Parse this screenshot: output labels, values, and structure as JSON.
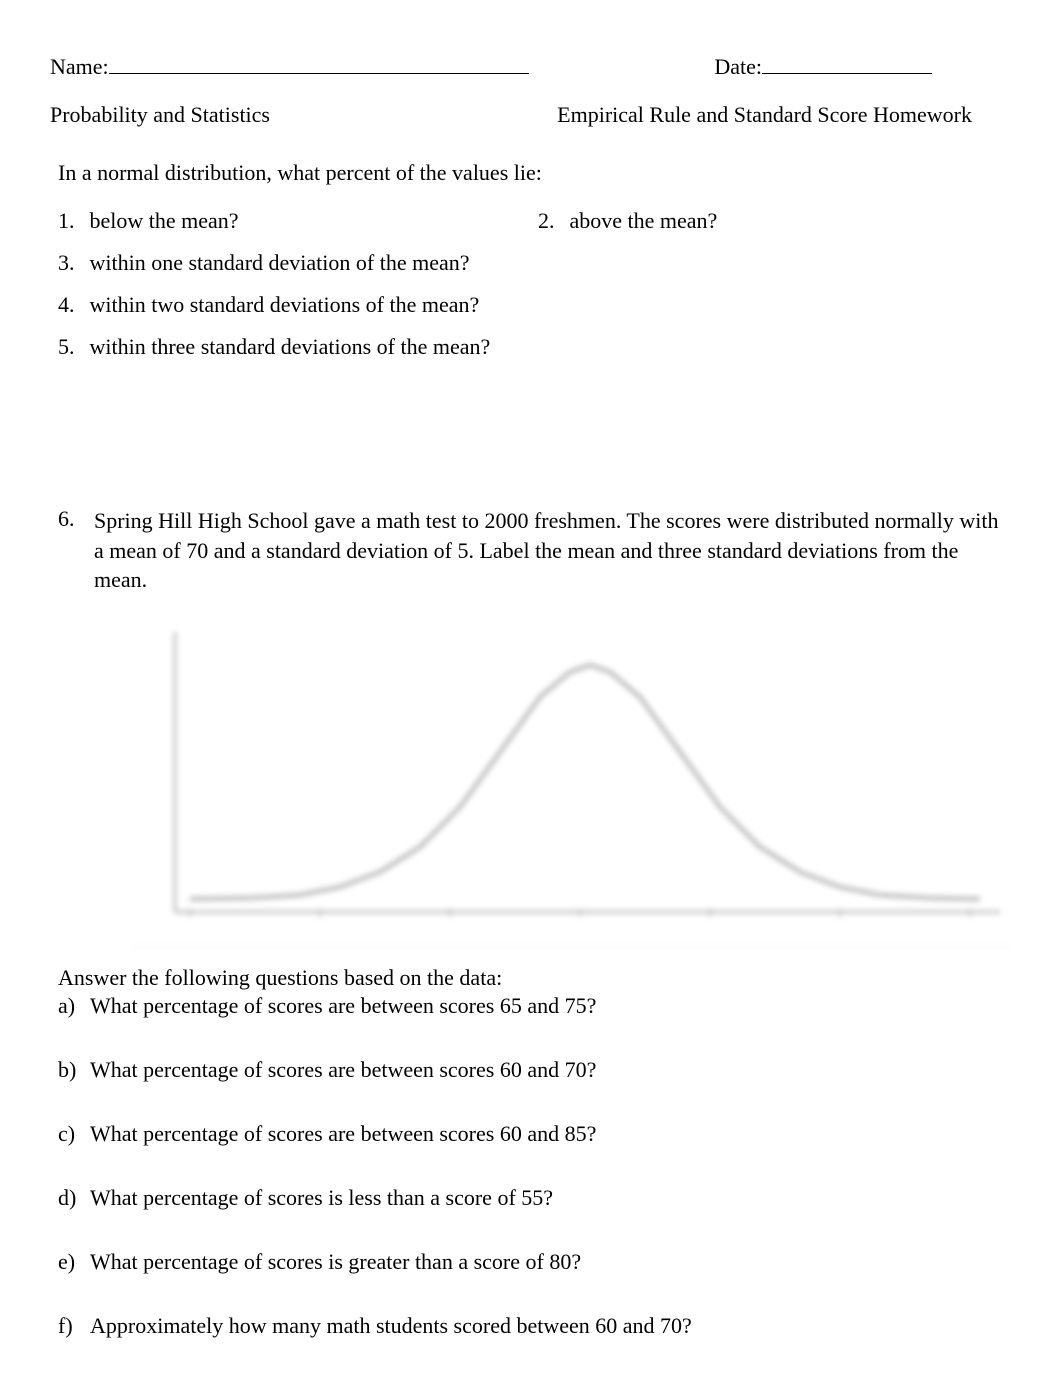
{
  "header": {
    "name_label": "Name:",
    "date_label": "Date:"
  },
  "subheader": {
    "left": "Probability and Statistics",
    "right": "Empirical Rule and Standard Score Homework"
  },
  "intro": "In a normal distribution, what percent of the values lie:",
  "questions": {
    "q1": {
      "num": "1.",
      "text": "below the mean?"
    },
    "q2": {
      "num": "2.",
      "text": "above the mean?"
    },
    "q3": {
      "num": "3.",
      "text": "within one standard deviation of the mean?"
    },
    "q4": {
      "num": "4.",
      "text": "within two standard deviations of the mean?"
    },
    "q5": {
      "num": "5.",
      "text": "within three standard deviations of the mean?"
    },
    "q6": {
      "num": "6.",
      "text": "Spring Hill High School  gave a math test to 2000 freshmen. The scores were distributed normally with a mean of 70 and a standard deviation of 5. Label the mean and three standard deviations from the mean."
    }
  },
  "chart": {
    "type": "line",
    "background_color": "#ffffff",
    "axis_color": "#8a8a8a",
    "curve_color": "#7a7a7a",
    "curve_stroke_width": 4,
    "axes_stroke_width": 3,
    "x_range": [
      0,
      880
    ],
    "y_range": [
      0,
      300
    ],
    "curve_points": [
      [
        60,
        282
      ],
      [
        120,
        281
      ],
      [
        170,
        278
      ],
      [
        210,
        270
      ],
      [
        250,
        255
      ],
      [
        290,
        230
      ],
      [
        330,
        190
      ],
      [
        370,
        135
      ],
      [
        410,
        80
      ],
      [
        440,
        55
      ],
      [
        460,
        48
      ],
      [
        480,
        55
      ],
      [
        510,
        80
      ],
      [
        550,
        135
      ],
      [
        590,
        190
      ],
      [
        630,
        230
      ],
      [
        670,
        255
      ],
      [
        710,
        270
      ],
      [
        750,
        278
      ],
      [
        800,
        281
      ],
      [
        850,
        282
      ]
    ],
    "tick_positions_x": [
      60,
      190,
      320,
      450,
      580,
      710,
      840
    ]
  },
  "followup_intro": "Answer the following questions based on the data:",
  "subquestions": {
    "a": {
      "letter": "a)",
      "text": "What percentage of scores are between scores 65 and 75?"
    },
    "b": {
      "letter": "b)",
      "text": "What percentage of scores are between scores 60 and 70?"
    },
    "c": {
      "letter": "c)",
      "text": "What percentage of scores are between scores 60 and 85?"
    },
    "d": {
      "letter": "d)",
      "text": "What percentage of scores is less than a score of 55?"
    },
    "e": {
      "letter": "e)",
      "text": "What percentage of scores is greater than a score of 80?"
    },
    "f": {
      "letter": "f)",
      "text": "Approximately how many math students scored between 60 and 70?"
    }
  }
}
